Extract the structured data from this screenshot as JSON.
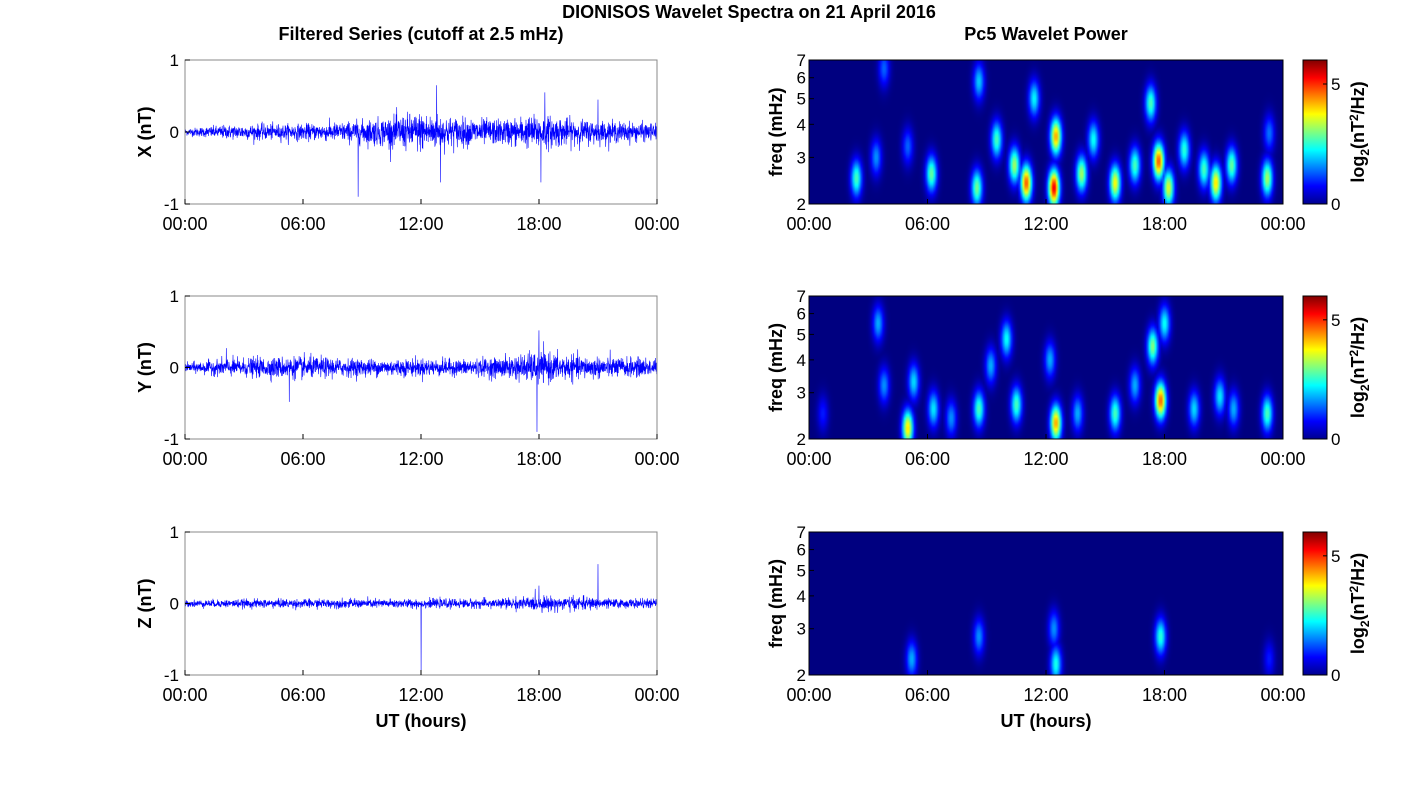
{
  "figure": {
    "title": "DIONISOS Wavelet Spectra on 21 April 2016",
    "left_column_title": "Filtered Series (cutoff at 2.5 mHz)",
    "right_column_title": "Pc5 Wavelet Power"
  },
  "colors": {
    "trace": "#0000ff",
    "axes": "#000000",
    "colormap": "jet",
    "spectrogram_background": "#00008f"
  },
  "chart_data": [
    {
      "type": "line",
      "component": "X",
      "ylabel": "X (nT)",
      "xlabel": "",
      "ylim": [
        -1,
        1
      ],
      "yticks": [
        "-1",
        "0",
        "1"
      ],
      "xticks": [
        "00:00",
        "06:00",
        "12:00",
        "18:00",
        "00:00"
      ],
      "xlim_hours": [
        0,
        24
      ],
      "envelope": {
        "hours": [
          0,
          2,
          4,
          6,
          8,
          10,
          12,
          14,
          16,
          18,
          20,
          22,
          24
        ],
        "amplitude_nT": [
          0.06,
          0.12,
          0.14,
          0.14,
          0.17,
          0.25,
          0.35,
          0.25,
          0.22,
          0.3,
          0.22,
          0.18,
          0.15
        ]
      },
      "peaks": [
        {
          "hour": 8.8,
          "value": -0.9
        },
        {
          "hour": 12.8,
          "value": 0.65
        },
        {
          "hour": 13.0,
          "value": -0.7
        },
        {
          "hour": 18.3,
          "value": 0.55
        },
        {
          "hour": 18.1,
          "value": -0.7
        },
        {
          "hour": 21.0,
          "value": 0.45
        }
      ]
    },
    {
      "type": "line",
      "component": "Y",
      "ylabel": "Y (nT)",
      "xlabel": "",
      "ylim": [
        -1,
        1
      ],
      "yticks": [
        "-1",
        "0",
        "1"
      ],
      "xticks": [
        "00:00",
        "06:00",
        "12:00",
        "18:00",
        "00:00"
      ],
      "xlim_hours": [
        0,
        24
      ],
      "envelope": {
        "hours": [
          0,
          2,
          4,
          6,
          8,
          10,
          12,
          14,
          16,
          18,
          20,
          22,
          24
        ],
        "amplitude_nT": [
          0.08,
          0.15,
          0.18,
          0.2,
          0.16,
          0.15,
          0.16,
          0.14,
          0.18,
          0.28,
          0.2,
          0.18,
          0.16
        ]
      },
      "peaks": [
        {
          "hour": 2.1,
          "value": 0.27
        },
        {
          "hour": 5.3,
          "value": -0.48
        },
        {
          "hour": 18.0,
          "value": 0.52
        },
        {
          "hour": 17.9,
          "value": -0.9
        }
      ]
    },
    {
      "type": "line",
      "component": "Z",
      "ylabel": "Z (nT)",
      "xlabel": "UT (hours)",
      "ylim": [
        -1,
        1
      ],
      "yticks": [
        "-1",
        "0",
        "1"
      ],
      "xticks": [
        "00:00",
        "06:00",
        "12:00",
        "18:00",
        "00:00"
      ],
      "xlim_hours": [
        0,
        24
      ],
      "envelope": {
        "hours": [
          0,
          2,
          4,
          6,
          8,
          10,
          12,
          14,
          16,
          18,
          20,
          22,
          24
        ],
        "amplitude_nT": [
          0.06,
          0.07,
          0.08,
          0.08,
          0.08,
          0.08,
          0.08,
          0.08,
          0.09,
          0.13,
          0.12,
          0.08,
          0.08
        ]
      },
      "peaks": [
        {
          "hour": 12.0,
          "value": -0.95
        },
        {
          "hour": 21.0,
          "value": 0.55
        },
        {
          "hour": 18.0,
          "value": 0.25
        }
      ]
    },
    {
      "type": "heatmap",
      "component": "X",
      "ylabel": "freq (mHz)",
      "xlabel": "",
      "ylim_mHz": [
        2,
        7
      ],
      "yscale": "log",
      "yticks": [
        "2",
        "3",
        "4",
        "5",
        "6",
        "7"
      ],
      "xticks": [
        "00:00",
        "06:00",
        "12:00",
        "18:00",
        "00:00"
      ],
      "xlim_hours": [
        0,
        24
      ],
      "colorbar": {
        "label": "log2(nT^2/Hz)",
        "ticks": [
          "0",
          "5"
        ],
        "range": [
          0,
          6
        ]
      },
      "blobs": [
        {
          "hour": 2.4,
          "freq_mHz": 2.5,
          "power": 3.0
        },
        {
          "hour": 3.4,
          "freq_mHz": 3.0,
          "power": 1.8
        },
        {
          "hour": 3.8,
          "freq_mHz": 6.5,
          "power": 1.5
        },
        {
          "hour": 5.0,
          "freq_mHz": 3.3,
          "power": 1.5
        },
        {
          "hour": 6.2,
          "freq_mHz": 2.6,
          "power": 3.2
        },
        {
          "hour": 8.5,
          "freq_mHz": 2.3,
          "power": 3.3
        },
        {
          "hour": 8.6,
          "freq_mHz": 5.8,
          "power": 2.2
        },
        {
          "hour": 9.5,
          "freq_mHz": 3.5,
          "power": 3.0
        },
        {
          "hour": 10.4,
          "freq_mHz": 2.8,
          "power": 3.6
        },
        {
          "hour": 11.0,
          "freq_mHz": 2.4,
          "power": 5.3
        },
        {
          "hour": 11.4,
          "freq_mHz": 5.0,
          "power": 2.5
        },
        {
          "hour": 12.4,
          "freq_mHz": 2.3,
          "power": 6.0
        },
        {
          "hour": 12.5,
          "freq_mHz": 3.6,
          "power": 4.8
        },
        {
          "hour": 13.8,
          "freq_mHz": 2.6,
          "power": 3.6
        },
        {
          "hour": 14.4,
          "freq_mHz": 3.5,
          "power": 2.6
        },
        {
          "hour": 15.5,
          "freq_mHz": 2.4,
          "power": 4.2
        },
        {
          "hour": 16.5,
          "freq_mHz": 2.8,
          "power": 3.0
        },
        {
          "hour": 17.3,
          "freq_mHz": 4.8,
          "power": 3.0
        },
        {
          "hour": 17.7,
          "freq_mHz": 2.9,
          "power": 5.3
        },
        {
          "hour": 18.2,
          "freq_mHz": 2.3,
          "power": 4.0
        },
        {
          "hour": 19.0,
          "freq_mHz": 3.2,
          "power": 2.8
        },
        {
          "hour": 20.0,
          "freq_mHz": 2.7,
          "power": 3.0
        },
        {
          "hour": 20.6,
          "freq_mHz": 2.4,
          "power": 4.4
        },
        {
          "hour": 21.4,
          "freq_mHz": 2.8,
          "power": 3.2
        },
        {
          "hour": 23.2,
          "freq_mHz": 2.5,
          "power": 3.6
        },
        {
          "hour": 23.3,
          "freq_mHz": 3.7,
          "power": 1.6
        }
      ]
    },
    {
      "type": "heatmap",
      "component": "Y",
      "ylabel": "freq (mHz)",
      "xlabel": "",
      "ylim_mHz": [
        2,
        7
      ],
      "yscale": "log",
      "yticks": [
        "2",
        "3",
        "4",
        "5",
        "6",
        "7"
      ],
      "xticks": [
        "00:00",
        "06:00",
        "12:00",
        "18:00",
        "00:00"
      ],
      "xlim_hours": [
        0,
        24
      ],
      "colorbar": {
        "label": "log2(nT^2/Hz)",
        "ticks": [
          "0",
          "5"
        ],
        "range": [
          0,
          6
        ]
      },
      "blobs": [
        {
          "hour": 0.7,
          "freq_mHz": 2.5,
          "power": 1.0
        },
        {
          "hour": 3.5,
          "freq_mHz": 5.5,
          "power": 2.0
        },
        {
          "hour": 3.8,
          "freq_mHz": 3.2,
          "power": 1.8
        },
        {
          "hour": 5.0,
          "freq_mHz": 2.2,
          "power": 4.4
        },
        {
          "hour": 5.3,
          "freq_mHz": 3.3,
          "power": 2.3
        },
        {
          "hour": 6.3,
          "freq_mHz": 2.6,
          "power": 2.4
        },
        {
          "hour": 7.2,
          "freq_mHz": 2.4,
          "power": 1.8
        },
        {
          "hour": 8.6,
          "freq_mHz": 2.6,
          "power": 3.0
        },
        {
          "hour": 9.2,
          "freq_mHz": 3.8,
          "power": 2.0
        },
        {
          "hour": 10.0,
          "freq_mHz": 4.8,
          "power": 2.6
        },
        {
          "hour": 10.5,
          "freq_mHz": 2.7,
          "power": 3.0
        },
        {
          "hour": 12.5,
          "freq_mHz": 2.3,
          "power": 4.8
        },
        {
          "hour": 12.2,
          "freq_mHz": 4.0,
          "power": 2.0
        },
        {
          "hour": 13.6,
          "freq_mHz": 2.5,
          "power": 2.0
        },
        {
          "hour": 15.5,
          "freq_mHz": 2.5,
          "power": 3.0
        },
        {
          "hour": 16.5,
          "freq_mHz": 3.2,
          "power": 2.0
        },
        {
          "hour": 17.4,
          "freq_mHz": 4.5,
          "power": 3.4
        },
        {
          "hour": 17.8,
          "freq_mHz": 2.8,
          "power": 5.2
        },
        {
          "hour": 18.0,
          "freq_mHz": 5.5,
          "power": 2.6
        },
        {
          "hour": 19.5,
          "freq_mHz": 2.6,
          "power": 2.3
        },
        {
          "hour": 20.8,
          "freq_mHz": 2.9,
          "power": 2.4
        },
        {
          "hour": 21.5,
          "freq_mHz": 2.6,
          "power": 2.0
        },
        {
          "hour": 23.2,
          "freq_mHz": 2.5,
          "power": 3.0
        }
      ]
    },
    {
      "type": "heatmap",
      "component": "Z",
      "ylabel": "freq (mHz)",
      "xlabel": "UT (hours)",
      "ylim_mHz": [
        2,
        7
      ],
      "yscale": "log",
      "yticks": [
        "2",
        "3",
        "4",
        "5",
        "6",
        "7"
      ],
      "xticks": [
        "00:00",
        "06:00",
        "12:00",
        "18:00",
        "00:00"
      ],
      "xlim_hours": [
        0,
        24
      ],
      "colorbar": {
        "label": "log2(nT^2/Hz)",
        "ticks": [
          "0",
          "5"
        ],
        "range": [
          0,
          6
        ]
      },
      "blobs": [
        {
          "hour": 5.2,
          "freq_mHz": 2.3,
          "power": 2.0
        },
        {
          "hour": 8.6,
          "freq_mHz": 2.8,
          "power": 1.8
        },
        {
          "hour": 12.5,
          "freq_mHz": 2.2,
          "power": 2.7
        },
        {
          "hour": 12.4,
          "freq_mHz": 3.0,
          "power": 1.8
        },
        {
          "hour": 17.8,
          "freq_mHz": 2.8,
          "power": 2.8
        },
        {
          "hour": 23.3,
          "freq_mHz": 2.3,
          "power": 1.0
        }
      ]
    }
  ]
}
